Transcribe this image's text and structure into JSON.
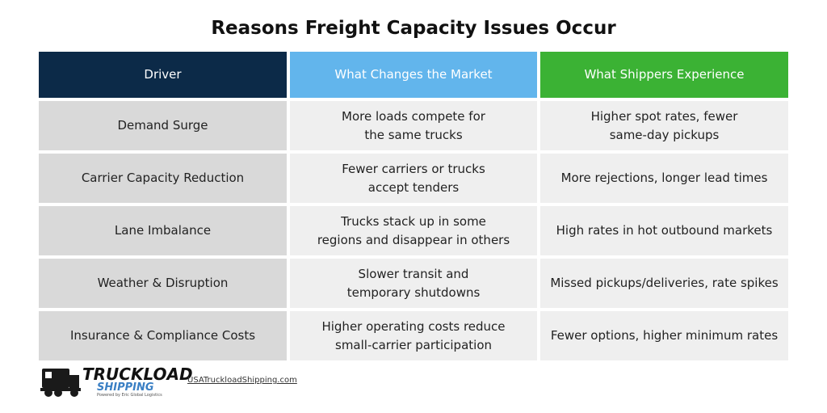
{
  "title": "Reasons Freight Capacity Issues Occur",
  "table": {
    "header": [
      "Driver",
      "What Changes the Market",
      "What Shippers Experience"
    ],
    "rows": [
      [
        [
          "Demand Surge"
        ],
        [
          "More loads compete for",
          "the same trucks"
        ],
        [
          "Higher spot rates, fewer",
          "same-day pickups"
        ]
      ],
      [
        [
          "Carrier Capacity Reduction"
        ],
        [
          "Fewer carriers or trucks",
          "accept tenders"
        ],
        [
          "More rejections, longer lead times"
        ]
      ],
      [
        [
          "Lane Imbalance"
        ],
        [
          "Trucks stack up in some",
          "regions and disappear in others"
        ],
        [
          "High rates in hot outbound markets"
        ]
      ],
      [
        [
          "Weather & Disruption"
        ],
        [
          "Slower transit and",
          "temporary shutdowns"
        ],
        [
          "Missed pickups/deliveries, rate spikes"
        ]
      ],
      [
        [
          "Insurance & Compliance Costs"
        ],
        [
          "Higher operating costs reduce",
          "small-carrier participation"
        ],
        [
          "Fewer options, higher minimum rates"
        ]
      ]
    ]
  },
  "footer": {
    "logo_line1": "TRUCKLOAD",
    "logo_line2": "SHIPPING",
    "logo_tagline": "Powered by Eric Global Logistics",
    "url": "USATruckloadShipping.com"
  }
}
